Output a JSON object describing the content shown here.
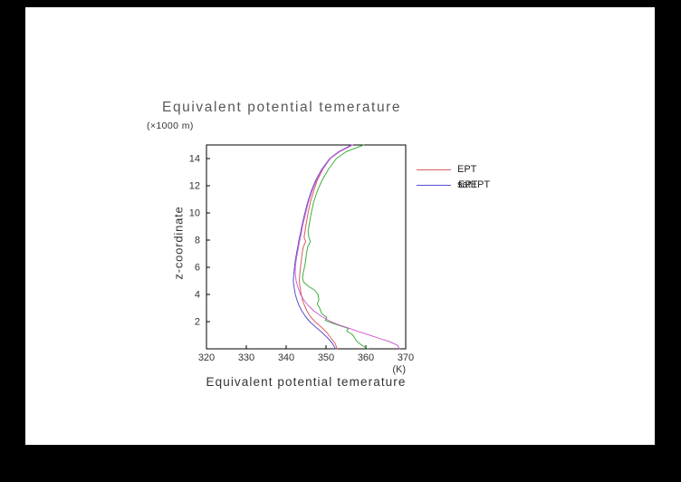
{
  "window": {
    "background_color": "#000000",
    "canvas_color": "#ffffff"
  },
  "chart_data": {
    "type": "line",
    "title": "Equivalent potential temerature",
    "xlabel": "Equivalent potential temerature",
    "x_unit": "(K)",
    "ylabel": "z-coordinate",
    "y_unit": "(×1000 m)",
    "xlim": [
      320,
      370
    ],
    "ylim": [
      0,
      15
    ],
    "x_ticks": [
      320,
      330,
      340,
      350,
      360,
      370
    ],
    "y_ticks": [
      2,
      4,
      6,
      8,
      10,
      12,
      14
    ],
    "grid": false,
    "legend_position": "outside-right-top",
    "series": [
      {
        "name": "EPT",
        "color": "#d95f5f",
        "points": [
          [
            352.8,
            0
          ],
          [
            352.3,
            0.4
          ],
          [
            351.2,
            0.8
          ],
          [
            350.2,
            1.2
          ],
          [
            348.8,
            1.6
          ],
          [
            347.2,
            2.0
          ],
          [
            346.0,
            2.4
          ],
          [
            345.2,
            2.8
          ],
          [
            344.6,
            3.2
          ],
          [
            344.1,
            3.6
          ],
          [
            343.8,
            4.0
          ],
          [
            343.5,
            4.5
          ],
          [
            343.3,
            5.0
          ],
          [
            343.4,
            5.5
          ],
          [
            343.6,
            6.0
          ],
          [
            343.8,
            6.5
          ],
          [
            344.0,
            7.0
          ],
          [
            344.3,
            7.5
          ],
          [
            344.9,
            7.9
          ],
          [
            344.5,
            8.2
          ],
          [
            344.7,
            8.6
          ],
          [
            344.9,
            9.0
          ],
          [
            345.2,
            9.5
          ],
          [
            345.5,
            10.0
          ],
          [
            346.1,
            10.8
          ],
          [
            346.9,
            11.6
          ],
          [
            347.8,
            12.4
          ],
          [
            349.2,
            13.2
          ],
          [
            351.0,
            14.0
          ],
          [
            353.2,
            14.5
          ],
          [
            356.5,
            15.0
          ]
        ]
      },
      {
        "name": "EPT",
        "color": "#3fae3f",
        "points": [
          [
            360.5,
            0
          ],
          [
            358.8,
            0.3
          ],
          [
            357.6,
            0.6
          ],
          [
            357.0,
            0.9
          ],
          [
            356.4,
            1.1
          ],
          [
            355.2,
            1.3
          ],
          [
            355.6,
            1.5
          ],
          [
            353.5,
            1.7
          ],
          [
            351.5,
            1.9
          ],
          [
            349.8,
            2.1
          ],
          [
            350.2,
            2.3
          ],
          [
            348.9,
            2.6
          ],
          [
            348.4,
            3.0
          ],
          [
            347.8,
            3.3
          ],
          [
            348.2,
            3.6
          ],
          [
            348.0,
            4.0
          ],
          [
            347.2,
            4.3
          ],
          [
            345.6,
            4.6
          ],
          [
            344.4,
            4.9
          ],
          [
            344.1,
            5.2
          ],
          [
            344.3,
            5.6
          ],
          [
            344.6,
            6.0
          ],
          [
            344.9,
            6.5
          ],
          [
            345.1,
            7.0
          ],
          [
            345.4,
            7.5
          ],
          [
            346.1,
            7.9
          ],
          [
            345.7,
            8.2
          ],
          [
            345.5,
            8.6
          ],
          [
            345.7,
            9.0
          ],
          [
            346.0,
            9.5
          ],
          [
            346.3,
            10.0
          ],
          [
            346.9,
            10.8
          ],
          [
            347.8,
            11.6
          ],
          [
            349.0,
            12.4
          ],
          [
            350.6,
            13.2
          ],
          [
            352.6,
            14.0
          ],
          [
            355.0,
            14.5
          ],
          [
            359.5,
            15.0
          ]
        ]
      },
      {
        "name": "satEPT",
        "color": "#5a4fcf",
        "points": [
          [
            352.4,
            0
          ],
          [
            351.6,
            0.4
          ],
          [
            350.4,
            0.8
          ],
          [
            349.0,
            1.2
          ],
          [
            347.4,
            1.6
          ],
          [
            345.9,
            2.0
          ],
          [
            344.8,
            2.4
          ],
          [
            343.9,
            2.8
          ],
          [
            343.2,
            3.2
          ],
          [
            342.7,
            3.6
          ],
          [
            342.3,
            4.0
          ],
          [
            342.0,
            4.5
          ],
          [
            341.8,
            5.0
          ],
          [
            341.9,
            5.5
          ],
          [
            342.1,
            6.0
          ],
          [
            342.3,
            6.5
          ],
          [
            342.6,
            7.0
          ],
          [
            342.9,
            7.5
          ],
          [
            343.2,
            8.0
          ],
          [
            343.6,
            8.5
          ],
          [
            343.9,
            9.0
          ],
          [
            344.3,
            9.5
          ],
          [
            344.7,
            10.0
          ],
          [
            345.4,
            10.8
          ],
          [
            346.3,
            11.6
          ],
          [
            347.4,
            12.4
          ],
          [
            348.9,
            13.2
          ],
          [
            350.9,
            14.0
          ],
          [
            353.2,
            14.5
          ],
          [
            356.4,
            15.0
          ]
        ]
      },
      {
        "name": "satEPT",
        "color": "#cf5fcf",
        "points": [
          [
            368.4,
            0
          ],
          [
            368.0,
            0.25
          ],
          [
            366.2,
            0.5
          ],
          [
            363.6,
            0.75
          ],
          [
            361.0,
            1.0
          ],
          [
            358.4,
            1.25
          ],
          [
            355.9,
            1.5
          ],
          [
            353.4,
            1.75
          ],
          [
            351.2,
            2.0
          ],
          [
            348.8,
            2.4
          ],
          [
            346.9,
            2.8
          ],
          [
            345.5,
            3.2
          ],
          [
            344.4,
            3.6
          ],
          [
            343.6,
            4.0
          ],
          [
            343.0,
            4.5
          ],
          [
            342.5,
            5.0
          ],
          [
            342.3,
            5.5
          ],
          [
            342.3,
            6.0
          ],
          [
            342.5,
            6.5
          ],
          [
            342.8,
            7.0
          ],
          [
            343.1,
            7.5
          ],
          [
            343.4,
            8.0
          ],
          [
            343.8,
            8.5
          ],
          [
            344.1,
            9.0
          ],
          [
            344.5,
            9.5
          ],
          [
            344.9,
            10.0
          ],
          [
            345.6,
            10.8
          ],
          [
            346.5,
            11.6
          ],
          [
            347.6,
            12.4
          ],
          [
            349.1,
            13.2
          ],
          [
            351.1,
            14.0
          ],
          [
            353.4,
            14.5
          ],
          [
            356.7,
            15.0
          ]
        ]
      }
    ]
  },
  "legend": {
    "rows": [
      {
        "label": "EPT",
        "line_color": "#d95f5f"
      },
      {
        "label": "satEPT",
        "overlay_label": "EPT",
        "line_color": "#5a4fcf"
      }
    ]
  }
}
